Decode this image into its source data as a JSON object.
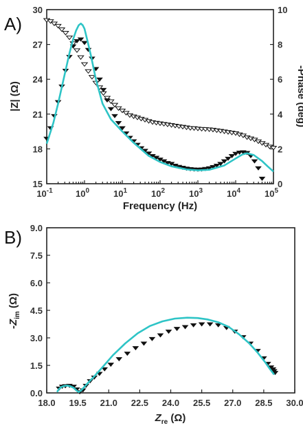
{
  "colors": {
    "fit": "#2ec4c6",
    "marker": "#111111"
  },
  "chart_data": [
    {
      "panel": "A)",
      "type": "scatter",
      "xlabel": "Frequency (Hz)",
      "ylabel_left": "|Z| (Ω)",
      "ylabel_right": "-Phase (deg)",
      "x_scale": "log",
      "xlim": [
        0.1,
        100000
      ],
      "ylim_left": [
        15,
        30
      ],
      "ylim_right": [
        0,
        10
      ],
      "x_ticks": [
        {
          "v": 0.1,
          "b": "10",
          "e": "-1"
        },
        {
          "v": 1,
          "b": "10",
          "e": "0"
        },
        {
          "v": 10,
          "b": "10",
          "e": "1"
        },
        {
          "v": 100,
          "b": "10",
          "e": "2"
        },
        {
          "v": 1000,
          "b": "10",
          "e": "3"
        },
        {
          "v": 10000,
          "b": "10",
          "e": "4"
        },
        {
          "v": 100000,
          "b": "10",
          "e": "5"
        }
      ],
      "y_ticks_left": [
        "15",
        "18",
        "21",
        "24",
        "27",
        "30"
      ],
      "y_ticks_right": [
        "0",
        "2",
        "4",
        "6",
        "8",
        "10"
      ],
      "grid": false,
      "series": [
        {
          "marker": "open-triangle-down",
          "axis": "left",
          "x": [
            0.1,
            0.126,
            0.158,
            0.2,
            0.251,
            0.316,
            0.398,
            0.501,
            0.631,
            0.794,
            1,
            1.26,
            1.58,
            2,
            2.51,
            3.16,
            3.98,
            5.01,
            6.31,
            7.94,
            10,
            12.6,
            15.8,
            20,
            25.1,
            31.6,
            39.8,
            50.1,
            63.1,
            79.4,
            100,
            126,
            158,
            200,
            251,
            316,
            398,
            501,
            631,
            794,
            1000,
            1260,
            1580,
            2000,
            2510,
            3160,
            3980,
            5010,
            6310,
            7940,
            10000,
            12600,
            15800,
            20000,
            25100,
            31600,
            39800,
            50100,
            63100,
            79400,
            100000
          ],
          "y": [
            29.1,
            29,
            28.8,
            28.6,
            28.3,
            28,
            27.6,
            27.1,
            26.5,
            25.9,
            25.3,
            24.7,
            24.2,
            23.7,
            23.3,
            22.8,
            22.4,
            22.1,
            21.8,
            21.5,
            21.3,
            21.1,
            20.9,
            20.8,
            20.7,
            20.6,
            20.5,
            20.4,
            20.3,
            20.25,
            20.2,
            20.15,
            20.1,
            20.05,
            20,
            19.95,
            19.9,
            19.85,
            19.8,
            19.78,
            19.75,
            19.72,
            19.7,
            19.68,
            19.65,
            19.6,
            19.55,
            19.5,
            19.45,
            19.4,
            19.35,
            19.25,
            19.15,
            19,
            18.9,
            18.8,
            18.65,
            18.5,
            18.35,
            18.2,
            18.1
          ]
        },
        {
          "marker": "filled-triangle-down",
          "axis": "right",
          "x": [
            0.1,
            0.126,
            0.158,
            0.2,
            0.251,
            0.316,
            0.398,
            0.501,
            0.631,
            0.794,
            1,
            1.26,
            1.58,
            2,
            2.51,
            3.16,
            3.98,
            5.01,
            6.31,
            7.94,
            10,
            12.6,
            15.8,
            20,
            25.1,
            31.6,
            39.8,
            50.1,
            63.1,
            79.4,
            100,
            126,
            158,
            200,
            251,
            316,
            398,
            501,
            631,
            794,
            1000,
            1260,
            1580,
            2000,
            2510,
            3160,
            3980,
            5010,
            6310,
            7940,
            10000,
            12600,
            15800,
            20000,
            25100,
            31600,
            39800,
            50100
          ],
          "y": [
            2.6,
            3.2,
            3.9,
            4.7,
            5.6,
            6.5,
            7.3,
            7.9,
            8.2,
            8.3,
            8.1,
            7.7,
            7.2,
            6.6,
            6,
            5.4,
            4.8,
            4.3,
            3.9,
            3.5,
            3.2,
            2.9,
            2.65,
            2.45,
            2.25,
            2.05,
            1.9,
            1.75,
            1.6,
            1.5,
            1.4,
            1.3,
            1.2,
            1.15,
            1.05,
            0.98,
            0.93,
            0.88,
            0.85,
            0.83,
            0.82,
            0.83,
            0.86,
            0.9,
            0.97,
            1.05,
            1.15,
            1.3,
            1.45,
            1.6,
            1.73,
            1.8,
            1.82,
            1.78,
            1.6,
            1.3,
            0.9,
            0.3
          ]
        },
        {
          "marker": "line",
          "axis": "right",
          "x": [
            0.1,
            0.15,
            0.2,
            0.3,
            0.4,
            0.5,
            0.6,
            0.7,
            0.8,
            0.9,
            1,
            1.2,
            1.5,
            2,
            3,
            5,
            10,
            20,
            50,
            100,
            200,
            500,
            1000,
            2000,
            5000,
            10000,
            15000,
            20000,
            30000,
            50000,
            70000,
            100000
          ],
          "y": [
            2.3,
            3.5,
            4.6,
            6.3,
            7.5,
            8.3,
            8.8,
            9.1,
            9.2,
            9.1,
            8.9,
            8.2,
            7.3,
            6,
            4.6,
            3.7,
            3,
            2.35,
            1.6,
            1.25,
            1,
            0.82,
            0.77,
            0.8,
            1.05,
            1.45,
            1.68,
            1.75,
            1.65,
            1.3,
            1,
            0.7
          ]
        }
      ]
    },
    {
      "panel": "B)",
      "type": "scatter",
      "xlabel_main": "Z",
      "xlabel_sub": "re",
      "xlabel_unit": " (Ω)",
      "ylabel_main": "-Z",
      "ylabel_sub": "im",
      "ylabel_unit": " (Ω)",
      "xlim": [
        18,
        30
      ],
      "ylim": [
        0,
        9
      ],
      "x_ticks": [
        "18.0",
        "19.5",
        "21.0",
        "22.5",
        "24.0",
        "25.5",
        "27.0",
        "28.5",
        "30.0"
      ],
      "y_ticks": [
        "0.0",
        "1.5",
        "3.0",
        "4.5",
        "6.0",
        "7.5",
        "9.0"
      ],
      "grid": false,
      "series": [
        {
          "marker": "filled-triangle-down",
          "x": [
            18.6,
            18.75,
            18.9,
            19.1,
            19.3,
            19.45,
            19.6,
            19.75,
            19.9,
            20.1,
            20.3,
            20.55,
            20.8,
            21.1,
            21.5,
            21.9,
            22.3,
            22.7,
            23.1,
            23.5,
            23.9,
            24.3,
            24.7,
            25.1,
            25.5,
            25.9,
            26.3,
            26.7,
            27.1,
            27.5,
            27.85,
            28.2,
            28.5,
            28.7,
            28.85,
            28.95,
            29.0,
            29.05
          ],
          "y": [
            0.25,
            0.35,
            0.38,
            0.4,
            0.35,
            0.2,
            0.05,
            0.15,
            0.4,
            0.65,
            0.85,
            1.05,
            1.3,
            1.55,
            1.85,
            2.15,
            2.45,
            2.7,
            2.95,
            3.15,
            3.35,
            3.5,
            3.6,
            3.7,
            3.75,
            3.75,
            3.7,
            3.55,
            3.35,
            3.05,
            2.7,
            2.3,
            1.9,
            1.6,
            1.4,
            1.3,
            1.2,
            1.1
          ]
        },
        {
          "marker": "line",
          "x": [
            18.5,
            18.6,
            18.7,
            18.85,
            19.0,
            19.15,
            19.3,
            19.45,
            19.55,
            19.65,
            19.8,
            20.0,
            20.3,
            20.7,
            21.2,
            21.8,
            22.4,
            23.0,
            23.6,
            24.2,
            24.8,
            25.3,
            25.8,
            26.3,
            26.8,
            27.3,
            27.8,
            28.2,
            28.55,
            28.8,
            29.0
          ],
          "y": [
            0.05,
            0.22,
            0.32,
            0.38,
            0.4,
            0.36,
            0.28,
            0.12,
            0.05,
            0.12,
            0.3,
            0.55,
            0.9,
            1.4,
            2.05,
            2.7,
            3.25,
            3.65,
            3.9,
            4.05,
            4.1,
            4.08,
            4.0,
            3.85,
            3.6,
            3.2,
            2.7,
            2.2,
            1.7,
            1.3,
            1.0
          ]
        }
      ]
    }
  ]
}
